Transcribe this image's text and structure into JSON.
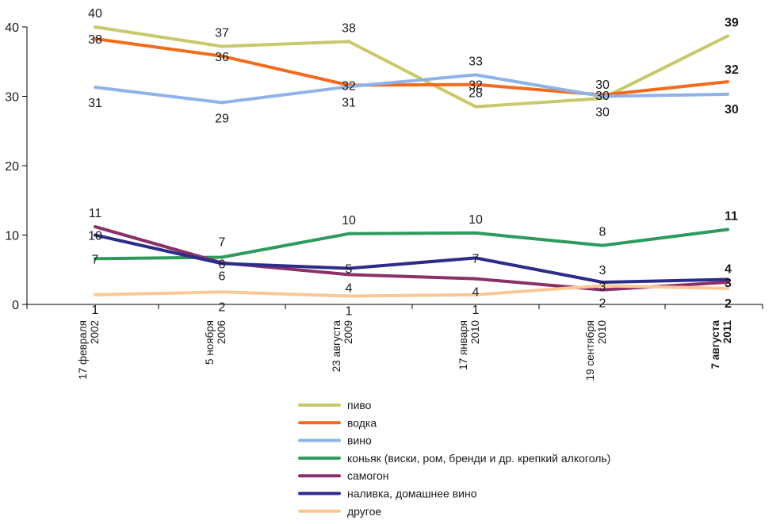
{
  "chart_data": {
    "type": "line",
    "categories": [
      [
        "17 февраля",
        "2002"
      ],
      [
        "5 ноября",
        "2006"
      ],
      [
        "23 августа",
        "2009"
      ],
      [
        "17 января",
        "2010"
      ],
      [
        "19 сентября",
        "2010"
      ],
      [
        "7 августа",
        "2011"
      ]
    ],
    "ylim": [
      0,
      40
    ],
    "yticks": [
      0,
      10,
      20,
      30,
      40
    ],
    "grid": false,
    "legend_position": "bottom",
    "series": [
      {
        "name": "пиво",
        "color": "#c9c86a",
        "values": [
          40,
          37,
          38,
          28,
          30,
          39
        ],
        "plot": [
          40,
          37.2,
          37.9,
          28.5,
          29.7,
          38.7
        ],
        "labels": [
          "40",
          "37",
          "38",
          "28",
          "30",
          "39"
        ]
      },
      {
        "name": "водка",
        "color": "#f26b1d",
        "values": [
          38,
          36,
          32,
          32,
          30,
          32
        ],
        "plot": [
          38.3,
          35.8,
          31.6,
          31.7,
          30.2,
          32.1
        ],
        "labels": [
          "38",
          "36",
          "32",
          "32",
          "30",
          "32"
        ]
      },
      {
        "name": "вино",
        "color": "#8fb3e8",
        "values": [
          31,
          29,
          31,
          33,
          30,
          30
        ],
        "plot": [
          31.3,
          29.1,
          31.4,
          33.1,
          30.0,
          30.3
        ],
        "labels": [
          "31",
          "29",
          "31",
          "33",
          "30",
          "30"
        ]
      },
      {
        "name": "коньяк (виски, ром, бренди и др. крепкий алкоголь)",
        "color": "#2e9a5e",
        "values": [
          7,
          7,
          10,
          10,
          8,
          11
        ],
        "plot": [
          6.6,
          6.8,
          10.2,
          10.3,
          8.5,
          10.8
        ],
        "labels": [
          "7",
          "7",
          "10",
          "10",
          "8",
          "11"
        ]
      },
      {
        "name": "самогон",
        "color": "#8b3168",
        "values": [
          11,
          6,
          4,
          4,
          2,
          3
        ],
        "plot": [
          11.2,
          6.0,
          4.3,
          3.7,
          2.1,
          3.2
        ],
        "labels": [
          "11",
          "6",
          "4",
          "4",
          "2",
          "3"
        ]
      },
      {
        "name": "наливка, домашнее вино",
        "color": "#2c2d8a",
        "values": [
          10,
          6,
          5,
          7,
          3,
          4
        ],
        "plot": [
          10.0,
          5.9,
          5.2,
          6.7,
          3.2,
          3.6
        ],
        "labels": [
          "10",
          "6",
          "5",
          "7",
          "3",
          "4"
        ]
      },
      {
        "name": "другое",
        "color": "#fbc895",
        "values": [
          1,
          2,
          1,
          1,
          3,
          2
        ],
        "plot": [
          1.4,
          1.8,
          1.2,
          1.4,
          2.7,
          2.3
        ],
        "labels": [
          "1",
          "2",
          "1",
          "1",
          "3",
          "2"
        ]
      }
    ]
  }
}
